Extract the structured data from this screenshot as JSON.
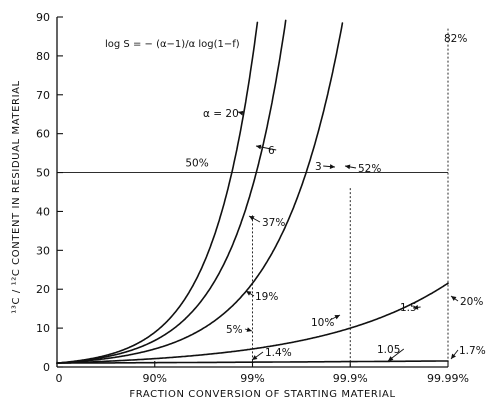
{
  "chart_data": {
    "type": "line",
    "title": "",
    "formula": "log S = − (α−1)/α log(1−f)",
    "xlabel": "FRACTION CONVERSION OF STARTING MATERIAL",
    "ylabel": "¹³C / ¹²C CONTENT IN RESIDUAL MATERIAL",
    "x_scale": "log(1-f)",
    "x_ticks": [
      "0",
      "90%",
      "99%",
      "99.9%",
      "99.99%"
    ],
    "x_tick_values": [
      0,
      0.9,
      0.99,
      0.999,
      0.9999
    ],
    "y_ticks": [
      "0",
      "10",
      "20",
      "30",
      "40",
      "50",
      "60",
      "70",
      "80",
      "90"
    ],
    "ylim": [
      0,
      90
    ],
    "series": [
      {
        "name": "α = 20",
        "alpha": 20
      },
      {
        "name": "6",
        "alpha": 6
      },
      {
        "name": "3",
        "alpha": 3
      },
      {
        "name": "1.5",
        "alpha": 1.5
      },
      {
        "name": "1.05",
        "alpha": 1.05
      }
    ],
    "reference_lines": [
      {
        "type": "horizontal",
        "y": 50,
        "label": "50%"
      }
    ],
    "annotations": [
      {
        "text": "82%",
        "series": "3",
        "x": 0.9999
      },
      {
        "text": "52%",
        "series": "3",
        "x": 0.999
      },
      {
        "text": "37%",
        "series": "6",
        "x": 0.99
      },
      {
        "text": "19%",
        "series": "3",
        "x": 0.99
      },
      {
        "text": "10%",
        "series": "1.5",
        "x": 0.999
      },
      {
        "text": "5%",
        "series": "1.5",
        "x": 0.99
      },
      {
        "text": "20%",
        "series": "1.5",
        "x": 0.9999
      },
      {
        "text": "1.4%",
        "series": "1.05",
        "x": 0.99
      },
      {
        "text": "1.7%",
        "series": "1.05",
        "x": 0.9999
      }
    ],
    "grid": false,
    "legend": "none"
  }
}
